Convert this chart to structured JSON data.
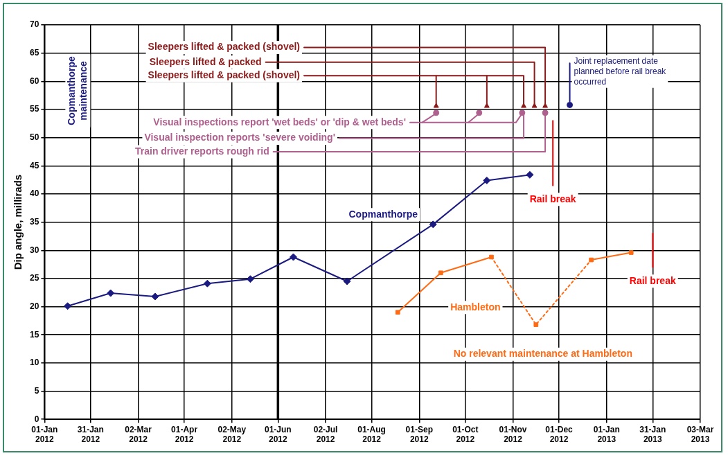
{
  "chart_data": {
    "type": "line",
    "ylabel": "Dip angle, millirads",
    "xlim": [
      "2012-01-01",
      "2013-03-03"
    ],
    "xticks": [
      {
        "value": "2012-01-01",
        "label": "01-Jan 2012"
      },
      {
        "value": "2012-01-31",
        "label": "31-Jan 2012"
      },
      {
        "value": "2012-03-02",
        "label": "02-Mar 2012"
      },
      {
        "value": "2012-04-01",
        "label": "01-Apr 2012"
      },
      {
        "value": "2012-05-02",
        "label": "02-May 2012"
      },
      {
        "value": "2012-06-01",
        "label": "01-Jun 2012"
      },
      {
        "value": "2012-07-02",
        "label": "02-Jul 2012"
      },
      {
        "value": "2012-08-01",
        "label": "01-Aug 2012"
      },
      {
        "value": "2012-09-01",
        "label": "01-Sep 2012"
      },
      {
        "value": "2012-10-01",
        "label": "01-Oct 2012"
      },
      {
        "value": "2012-11-01",
        "label": "01-Nov 2012"
      },
      {
        "value": "2012-12-01",
        "label": "01-Dec 2012"
      },
      {
        "value": "2013-01-01",
        "label": "01-Jan 2013"
      },
      {
        "value": "2013-01-31",
        "label": "31-Jan 2013"
      },
      {
        "value": "2013-03-03",
        "label": "03-Mar 2013"
      }
    ],
    "ylim": [
      0,
      70
    ],
    "yticks": [
      0,
      5,
      10,
      15,
      20,
      25,
      30,
      35,
      40,
      45,
      50,
      55,
      60,
      65,
      70
    ],
    "grid": true,
    "legend": false,
    "series": [
      {
        "name": "Copmanthorpe",
        "color": "#1a1a80",
        "marker": "diamond",
        "line_style": "solid",
        "x": [
          "2012-01-16",
          "2012-02-13",
          "2012-03-13",
          "2012-04-16",
          "2012-05-14",
          "2012-06-11",
          "2012-07-16",
          "2012-09-10",
          "2012-10-15",
          "2012-11-12"
        ],
        "values": [
          20.1,
          22.4,
          21.8,
          24.1,
          24.9,
          28.8,
          24.5,
          34.6,
          42.4,
          43.4
        ]
      },
      {
        "name": "Hambleton",
        "color": "#ff6a13",
        "marker": "square",
        "line_style": "solid",
        "x": [
          "2012-08-18",
          "2012-09-15",
          "2012-10-18"
        ],
        "values": [
          19.0,
          26.0,
          28.8
        ]
      },
      {
        "color": "#ff6a13",
        "marker": "none",
        "line_style": "dotted",
        "x": [
          "2012-10-18",
          "2012-11-16",
          "2012-12-22"
        ],
        "values": [
          28.8,
          16.8,
          28.3
        ]
      },
      {
        "type": "scatter",
        "color": "#ff6a13",
        "marker": "square",
        "x": [
          "2012-11-16"
        ],
        "values": [
          16.8
        ]
      },
      {
        "color": "#ff6a13",
        "marker": "square",
        "line_style": "solid",
        "x": [
          "2012-12-22",
          "2013-01-17"
        ],
        "values": [
          28.3,
          29.6
        ]
      },
      {
        "name": "Rail break",
        "color": "#ff0000",
        "marker": "none",
        "line_style": "solid",
        "x": [
          "2012-11-27",
          "2012-11-27"
        ],
        "values": [
          53,
          41.5
        ]
      },
      {
        "name": "Rail break",
        "color": "#ff0000",
        "marker": "none",
        "line_style": "solid",
        "x": [
          "2013-01-31",
          "2013-01-31"
        ],
        "values": [
          33,
          27
        ]
      },
      {
        "name": "Sleepers lifted & packed (shovel)",
        "color": "#8b1a1a",
        "marker": "none",
        "line_style": "solid",
        "x": [
          "2012-06-18",
          "2012-11-22",
          "2012-11-22"
        ],
        "values": [
          66,
          66,
          56
        ]
      },
      {
        "name": "Sleepers lifted & packed",
        "color": "#8b1a1a",
        "marker": "none",
        "line_style": "solid",
        "x": [
          "2012-05-24",
          "2012-11-15",
          "2012-11-15"
        ],
        "values": [
          63.4,
          63.4,
          56
        ]
      },
      {
        "name": "Sleepers lifted & packed (shovel)",
        "color": "#8b1a1a",
        "marker": "none",
        "line_style": "solid",
        "x": [
          "2012-06-18",
          "2012-11-08",
          "2012-11-08"
        ],
        "values": [
          61,
          61,
          56
        ]
      },
      {
        "color": "#8b1a1a",
        "marker": "none",
        "line_style": "solid",
        "x": [
          "2012-09-12",
          "2012-09-12"
        ],
        "values": [
          61,
          56
        ]
      },
      {
        "color": "#8b1a1a",
        "marker": "none",
        "line_style": "solid",
        "x": [
          "2012-10-15",
          "2012-10-15"
        ],
        "values": [
          61,
          56
        ]
      },
      {
        "type": "scatter",
        "color": "#8b1a1a",
        "marker": "triangle",
        "x": [
          "2012-09-12",
          "2012-10-15",
          "2012-11-08",
          "2012-11-15",
          "2012-11-22"
        ],
        "values": [
          55.6,
          55.6,
          55.6,
          55.6,
          55.6
        ]
      },
      {
        "name": "Visual inspections report 'wet beds' or 'dip & wet beds'",
        "color": "#b0608f",
        "marker": "none",
        "line_style": "solid",
        "x": [
          "2012-08-26",
          "2012-11-03",
          "2012-11-07"
        ],
        "values": [
          52.7,
          52.7,
          54.3
        ]
      },
      {
        "color": "#b0608f",
        "marker": "none",
        "line_style": "solid",
        "x": [
          "2012-09-03",
          "2012-09-12"
        ],
        "values": [
          52.7,
          54.3
        ]
      },
      {
        "color": "#b0608f",
        "marker": "none",
        "line_style": "solid",
        "x": [
          "2012-10-03",
          "2012-10-10"
        ],
        "values": [
          52.7,
          54.3
        ]
      },
      {
        "name": "Visual inspection reports 'severe voiding'",
        "color": "#b0608f",
        "marker": "none",
        "line_style": "solid",
        "x": [
          "2012-07-11",
          "2012-11-08",
          "2012-11-08"
        ],
        "values": [
          49.9,
          49.9,
          54.2
        ]
      },
      {
        "name": "Train driver reports rough rid",
        "color": "#b0608f",
        "marker": "none",
        "line_style": "solid",
        "x": [
          "2012-05-29",
          "2012-11-22",
          "2012-11-22"
        ],
        "values": [
          47.5,
          47.5,
          54.2
        ]
      },
      {
        "type": "scatter",
        "color": "#b0608f",
        "marker": "circle",
        "x": [
          "2012-09-12",
          "2012-10-10",
          "2012-11-07",
          "2012-11-22"
        ],
        "values": [
          54.4,
          54.4,
          54.4,
          54.4
        ]
      },
      {
        "name": "Joint replacement date planned before rail break occurred",
        "color": "#1a1a80",
        "marker": "none",
        "line_style": "solid",
        "x": [
          "2012-12-08",
          "2012-12-08"
        ],
        "values": [
          63.2,
          56.4
        ]
      },
      {
        "type": "scatter",
        "color": "#1a1a80",
        "marker": "circle",
        "x": [
          "2012-12-08"
        ],
        "values": [
          55.8
        ]
      }
    ],
    "ref_lines": [
      {
        "axis": "x",
        "value": "2012-06-01",
        "color": "#000000"
      }
    ],
    "annotations": [
      "Copmanthorpe maintenance",
      "No relevant maintenance at Hambleton"
    ]
  }
}
